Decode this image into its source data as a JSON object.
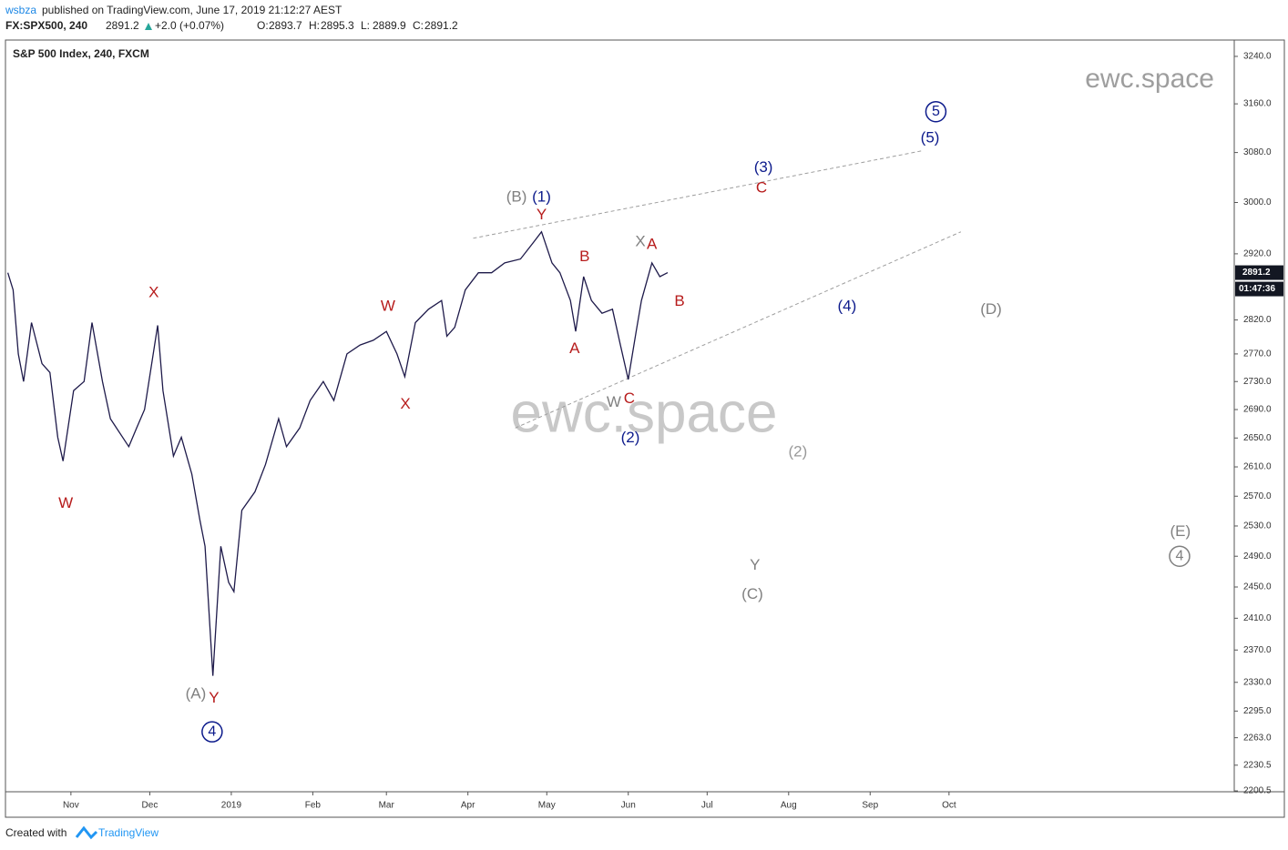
{
  "header": {
    "author": "wsbza",
    "published": "published on TradingView.com, June 17, 2019 21:12:27 AEST",
    "symbol": "FX:SPX500, 240",
    "last": "2891.2",
    "change": "+2.0 (+0.07%)",
    "ohlc": [
      {
        "label": "O:",
        "value": "2893.7"
      },
      {
        "label": "H:",
        "value": "2895.3"
      },
      {
        "label": "L:",
        "value": "2889.9"
      },
      {
        "label": "C:",
        "value": "2891.2"
      }
    ]
  },
  "chart_data": {
    "type": "line",
    "title": "S&P 500 Index, 240, FXCM",
    "color": "#1e1a4a",
    "log_scale": true,
    "x": [
      7,
      9,
      11,
      13,
      16,
      20,
      23,
      26,
      28,
      32,
      36,
      39,
      43,
      46,
      53,
      56,
      59,
      64,
      66,
      70,
      73,
      77,
      80,
      82,
      85,
      88,
      91,
      93,
      96,
      101,
      105,
      110,
      113,
      118,
      122,
      127,
      131,
      136,
      141,
      146,
      151,
      155,
      158,
      162,
      167,
      172,
      174,
      177,
      181,
      186,
      191,
      196,
      202,
      207,
      210,
      214,
      217,
      221,
      223,
      226,
      229,
      233,
      237,
      240,
      243,
      246,
      248,
      252,
      255,
      258
    ],
    "values": [
      2891,
      2865,
      2770,
      2730,
      2816,
      2756,
      2743,
      2651,
      2618,
      2717,
      2730,
      2816,
      2730,
      2677,
      2638,
      2664,
      2690,
      2812,
      2717,
      2625,
      2651,
      2600,
      2539,
      2503,
      2338,
      2503,
      2456,
      2444,
      2551,
      2576,
      2613,
      2677,
      2638,
      2664,
      2703,
      2730,
      2703,
      2770,
      2783,
      2790,
      2803,
      2770,
      2737,
      2816,
      2836,
      2849,
      2796,
      2809,
      2865,
      2891,
      2891,
      2906,
      2912,
      2938,
      2954,
      2906,
      2891,
      2849,
      2803,
      2885,
      2849,
      2830,
      2836,
      2783,
      2733,
      2803,
      2849,
      2906,
      2885,
      2891.2
    ],
    "countdown": "01:47:36",
    "xlim": [
      6.1,
      473.5
    ],
    "xticks": [
      {
        "value": 31,
        "label": "Nov"
      },
      {
        "value": 61,
        "label": "Dec"
      },
      {
        "value": 92,
        "label": "2019"
      },
      {
        "value": 123,
        "label": "Feb"
      },
      {
        "value": 151,
        "label": "Mar"
      },
      {
        "value": 182,
        "label": "Apr"
      },
      {
        "value": 212,
        "label": "May"
      },
      {
        "value": 243,
        "label": "Jun"
      },
      {
        "value": 273,
        "label": "Jul"
      },
      {
        "value": 304,
        "label": "Aug"
      },
      {
        "value": 335,
        "label": "Sep"
      },
      {
        "value": 365,
        "label": "Oct"
      }
    ],
    "ylim": [
      2199.5,
      3268
    ],
    "yticks": [
      {
        "value": 3240,
        "label": "3240.0"
      },
      {
        "value": 3160,
        "label": "3160.0"
      },
      {
        "value": 3080,
        "label": "3080.0"
      },
      {
        "value": 3000,
        "label": "3000.0"
      },
      {
        "value": 2920,
        "label": "2920.0"
      },
      {
        "value": 2820,
        "label": "2820.0"
      },
      {
        "value": 2770,
        "label": "2770.0"
      },
      {
        "value": 2730,
        "label": "2730.0"
      },
      {
        "value": 2690,
        "label": "2690.0"
      },
      {
        "value": 2650,
        "label": "2650.0"
      },
      {
        "value": 2610,
        "label": "2610.0"
      },
      {
        "value": 2570,
        "label": "2570.0"
      },
      {
        "value": 2530,
        "label": "2530.0"
      },
      {
        "value": 2490,
        "label": "2490.0"
      },
      {
        "value": 2450,
        "label": "2450.0"
      },
      {
        "value": 2410,
        "label": "2410.0"
      },
      {
        "value": 2370,
        "label": "2370.0"
      },
      {
        "value": 2330,
        "label": "2330.0"
      },
      {
        "value": 2295,
        "label": "2295.0"
      },
      {
        "value": 2263,
        "label": "2263.0"
      },
      {
        "value": 2230.5,
        "label": "2230.5"
      },
      {
        "value": 2200.5,
        "label": "2200.5"
      }
    ],
    "trendlines": [
      {
        "x": [
          184,
          355
        ],
        "y": [
          2944,
          3083
        ]
      },
      {
        "x": [
          200,
          369.5
        ],
        "y": [
          2664,
          2954
        ]
      }
    ],
    "watermark": "ewc.space",
    "annotations": [
      {
        "text": "W",
        "x": 29,
        "y": 2560,
        "color": "#b71c1c"
      },
      {
        "text": "X",
        "x": 62.5,
        "y": 2860,
        "color": "#b71c1c"
      },
      {
        "text": "(A)",
        "x": 78.5,
        "y": 2315,
        "color": "#808080"
      },
      {
        "text": "Y",
        "x": 85.4,
        "y": 2310,
        "color": "#b71c1c"
      },
      {
        "text": "4",
        "x": 84.7,
        "y": 2270,
        "color": "#0d1b8c",
        "circled": true
      },
      {
        "text": "W",
        "x": 151.6,
        "y": 2840,
        "color": "#b71c1c"
      },
      {
        "text": "X",
        "x": 158.2,
        "y": 2697,
        "color": "#b71c1c"
      },
      {
        "text": "(B)",
        "x": 200.5,
        "y": 3008,
        "color": "#808080"
      },
      {
        "text": "(1)",
        "x": 210,
        "y": 3008,
        "color": "#0d1b8c"
      },
      {
        "text": "Y",
        "x": 210,
        "y": 2980,
        "color": "#b71c1c"
      },
      {
        "text": "B",
        "x": 226.4,
        "y": 2915,
        "color": "#b71c1c"
      },
      {
        "text": "A",
        "x": 222.6,
        "y": 2777,
        "color": "#b71c1c"
      },
      {
        "text": "X",
        "x": 247.6,
        "y": 2938,
        "color": "#808080"
      },
      {
        "text": "A",
        "x": 252,
        "y": 2934,
        "color": "#b71c1c"
      },
      {
        "text": "B",
        "x": 262.5,
        "y": 2847,
        "color": "#b71c1c"
      },
      {
        "text": "C",
        "x": 243.4,
        "y": 2705,
        "color": "#b71c1c"
      },
      {
        "text": "W",
        "x": 237.5,
        "y": 2700,
        "color": "#808080"
      },
      {
        "text": "(2)",
        "x": 243.8,
        "y": 2650,
        "color": "#0d1b8c"
      },
      {
        "text": "(3)",
        "x": 294.4,
        "y": 3055,
        "color": "#0d1b8c"
      },
      {
        "text": "C",
        "x": 293.7,
        "y": 3022,
        "color": "#b71c1c"
      },
      {
        "text": "5",
        "x": 360,
        "y": 3147,
        "color": "#0d1b8c",
        "circled": true
      },
      {
        "text": "(5)",
        "x": 357.8,
        "y": 3103,
        "color": "#0d1b8c"
      },
      {
        "text": "(4)",
        "x": 326.2,
        "y": 2840,
        "color": "#0d1b8c"
      },
      {
        "text": "(D)",
        "x": 381,
        "y": 2835,
        "color": "#808080"
      },
      {
        "text": "(2)",
        "x": 307.5,
        "y": 2630,
        "color": "#999999"
      },
      {
        "text": "Y",
        "x": 291.2,
        "y": 2478,
        "color": "#808080"
      },
      {
        "text": "(C)",
        "x": 290.2,
        "y": 2440,
        "color": "#808080"
      },
      {
        "text": "(E)",
        "x": 453,
        "y": 2522,
        "color": "#808080"
      },
      {
        "text": "4",
        "x": 452.7,
        "y": 2490,
        "color": "#808080",
        "circled": true
      }
    ]
  },
  "footer": {
    "created": "Created with",
    "brand": "TradingView"
  }
}
